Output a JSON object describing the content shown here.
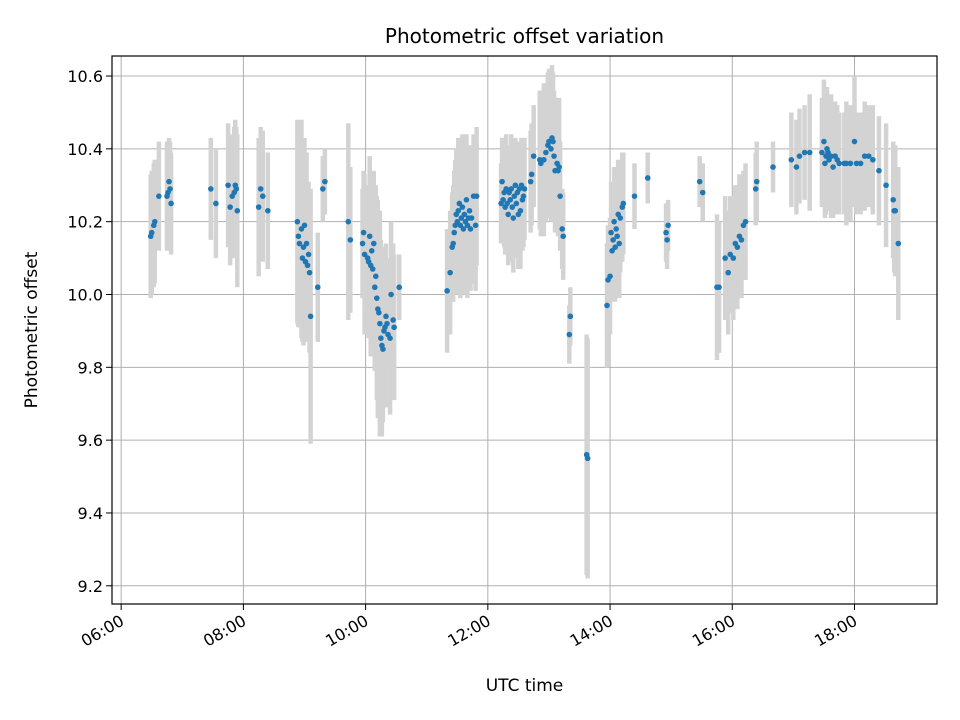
{
  "chart_data": {
    "type": "scatter",
    "title": "Photometric offset variation",
    "xlabel": "UTC time",
    "ylabel": "Photometric offset",
    "x_unit": "hours UTC",
    "xlim": [
      "05:51",
      "19:21"
    ],
    "ylim": [
      9.15,
      10.655
    ],
    "x_ticks": [
      "06:00",
      "08:00",
      "10:00",
      "12:00",
      "14:00",
      "16:00",
      "18:00"
    ],
    "y_ticks": [
      9.2,
      9.4,
      9.6,
      9.8,
      10.0,
      10.2,
      10.4,
      10.6
    ],
    "y_tick_labels": [
      "9.2",
      "9.4",
      "9.6",
      "9.8",
      "10.0",
      "10.2",
      "10.4",
      "10.6"
    ],
    "grid": true,
    "point_color": "#1f77b4",
    "errorbar_color": "#d3d3d3",
    "points": [
      [
        "06:29",
        10.16,
        0.17
      ],
      [
        "06:30",
        10.17,
        0.17
      ],
      [
        "06:32",
        10.19,
        0.17
      ],
      [
        "06:33",
        10.2,
        0.17
      ],
      [
        "06:37",
        10.27,
        0.15
      ],
      [
        "06:45",
        10.27,
        0.15
      ],
      [
        "06:46",
        10.28,
        0.14
      ],
      [
        "06:47",
        10.31,
        0.12
      ],
      [
        "06:48",
        10.29,
        0.13
      ],
      [
        "06:49",
        10.25,
        0.14
      ],
      [
        "07:28",
        10.29,
        0.14
      ],
      [
        "07:33",
        10.25,
        0.15
      ],
      [
        "07:45",
        10.3,
        0.17
      ],
      [
        "07:47",
        10.24,
        0.16
      ],
      [
        "07:49",
        10.27,
        0.17
      ],
      [
        "07:51",
        10.28,
        0.18
      ],
      [
        "07:52",
        10.3,
        0.18
      ],
      [
        "07:53",
        10.29,
        0.17
      ],
      [
        "07:54",
        10.23,
        0.21
      ],
      [
        "08:15",
        10.24,
        0.19
      ],
      [
        "08:17",
        10.29,
        0.17
      ],
      [
        "08:19",
        10.27,
        0.18
      ],
      [
        "08:24",
        10.23,
        0.16
      ],
      [
        "08:53",
        10.2,
        0.28
      ],
      [
        "08:54",
        10.16,
        0.25
      ],
      [
        "08:55",
        10.14,
        0.23
      ],
      [
        "08:57",
        10.18,
        0.3
      ],
      [
        "08:58",
        10.1,
        0.23
      ],
      [
        "08:59",
        10.13,
        0.27
      ],
      [
        "09:00",
        10.19,
        0.24
      ],
      [
        "09:01",
        10.09,
        0.22
      ],
      [
        "09:02",
        10.14,
        0.25
      ],
      [
        "09:03",
        10.08,
        0.19
      ],
      [
        "09:04",
        10.11,
        0.2
      ],
      [
        "09:05",
        10.06,
        0.22
      ],
      [
        "09:06",
        9.94,
        0.35
      ],
      [
        "09:13",
        10.02,
        0.15
      ],
      [
        "09:18",
        10.29,
        0.09
      ],
      [
        "09:20",
        10.31,
        0.09
      ],
      [
        "09:43",
        10.2,
        0.27
      ],
      [
        "09:45",
        10.15,
        0.2
      ],
      [
        "09:57",
        10.14,
        0.15
      ],
      [
        "09:58",
        10.17,
        0.17
      ],
      [
        "09:59",
        10.11,
        0.22
      ],
      [
        "10:02",
        10.1,
        0.2
      ],
      [
        "10:03",
        10.09,
        0.21
      ],
      [
        "10:04",
        10.16,
        0.22
      ],
      [
        "10:05",
        10.08,
        0.25
      ],
      [
        "10:06",
        10.12,
        0.2
      ],
      [
        "10:07",
        10.07,
        0.22
      ],
      [
        "10:08",
        10.14,
        0.2
      ],
      [
        "10:09",
        10.02,
        0.23
      ],
      [
        "10:10",
        10.05,
        0.25
      ],
      [
        "10:11",
        9.99,
        0.28
      ],
      [
        "10:12",
        9.96,
        0.3
      ],
      [
        "10:13",
        9.95,
        0.27
      ],
      [
        "10:14",
        9.92,
        0.31
      ],
      [
        "10:15",
        9.88,
        0.27
      ],
      [
        "10:16",
        9.86,
        0.25
      ],
      [
        "10:17",
        9.85,
        0.2
      ],
      [
        "10:18",
        9.9,
        0.2
      ],
      [
        "10:19",
        9.91,
        0.22
      ],
      [
        "10:20",
        9.94,
        0.2
      ],
      [
        "10:21",
        9.92,
        0.18
      ],
      [
        "10:22",
        9.89,
        0.2
      ],
      [
        "10:24",
        9.88,
        0.21
      ],
      [
        "10:25",
        10.0,
        0.2
      ],
      [
        "10:27",
        9.93,
        0.21
      ],
      [
        "10:28",
        9.91,
        0.2
      ],
      [
        "10:33",
        10.02,
        0.09
      ],
      [
        "11:20",
        10.01,
        0.17
      ],
      [
        "11:23",
        10.06,
        0.17
      ],
      [
        "11:25",
        10.13,
        0.15
      ],
      [
        "11:26",
        10.14,
        0.16
      ],
      [
        "11:27",
        10.17,
        0.17
      ],
      [
        "11:28",
        10.19,
        0.18
      ],
      [
        "11:29",
        10.22,
        0.18
      ],
      [
        "11:30",
        10.2,
        0.2
      ],
      [
        "11:31",
        10.23,
        0.2
      ],
      [
        "11:32",
        10.25,
        0.18
      ],
      [
        "11:33",
        10.19,
        0.2
      ],
      [
        "11:34",
        10.21,
        0.18
      ],
      [
        "11:35",
        10.24,
        0.2
      ],
      [
        "11:36",
        10.18,
        0.18
      ],
      [
        "11:37",
        10.22,
        0.18
      ],
      [
        "11:38",
        10.2,
        0.17
      ],
      [
        "11:39",
        10.26,
        0.18
      ],
      [
        "11:40",
        10.19,
        0.2
      ],
      [
        "11:41",
        10.21,
        0.17
      ],
      [
        "11:42",
        10.23,
        0.18
      ],
      [
        "11:43",
        10.18,
        0.17
      ],
      [
        "11:44",
        10.21,
        0.18
      ],
      [
        "11:46",
        10.27,
        0.17
      ],
      [
        "11:48",
        10.19,
        0.18
      ],
      [
        "11:49",
        10.27,
        0.19
      ],
      [
        "12:13",
        10.25,
        0.11
      ],
      [
        "12:14",
        10.31,
        0.12
      ],
      [
        "12:15",
        10.26,
        0.12
      ],
      [
        "12:16",
        10.28,
        0.15
      ],
      [
        "12:17",
        10.24,
        0.13
      ],
      [
        "12:18",
        10.29,
        0.15
      ],
      [
        "12:19",
        10.25,
        0.12
      ],
      [
        "12:20",
        10.22,
        0.14
      ],
      [
        "12:21",
        10.28,
        0.13
      ],
      [
        "12:22",
        10.26,
        0.14
      ],
      [
        "12:23",
        10.29,
        0.15
      ],
      [
        "12:24",
        10.24,
        0.15
      ],
      [
        "12:25",
        10.21,
        0.15
      ],
      [
        "12:26",
        10.27,
        0.14
      ],
      [
        "12:27",
        10.3,
        0.13
      ],
      [
        "12:28",
        10.25,
        0.15
      ],
      [
        "12:29",
        10.28,
        0.14
      ],
      [
        "12:30",
        10.22,
        0.15
      ],
      [
        "12:31",
        10.29,
        0.13
      ],
      [
        "12:32",
        10.23,
        0.16
      ],
      [
        "12:33",
        10.3,
        0.13
      ],
      [
        "12:34",
        10.26,
        0.14
      ],
      [
        "12:35",
        10.27,
        0.14
      ],
      [
        "12:36",
        10.29,
        0.14
      ],
      [
        "12:42",
        10.31,
        0.14
      ],
      [
        "12:43",
        10.33,
        0.14
      ],
      [
        "12:45",
        10.38,
        0.14
      ],
      [
        "12:51",
        10.37,
        0.19
      ],
      [
        "12:52",
        10.36,
        0.2
      ],
      [
        "12:55",
        10.37,
        0.21
      ],
      [
        "12:57",
        10.39,
        0.19
      ],
      [
        "12:59",
        10.41,
        0.2
      ],
      [
        "13:00",
        10.42,
        0.2
      ],
      [
        "13:02",
        10.4,
        0.2
      ],
      [
        "13:03",
        10.43,
        0.2
      ],
      [
        "13:04",
        10.42,
        0.19
      ],
      [
        "13:05",
        10.38,
        0.18
      ],
      [
        "13:06",
        10.34,
        0.17
      ],
      [
        "13:08",
        10.36,
        0.18
      ],
      [
        "13:09",
        10.34,
        0.18
      ],
      [
        "13:10",
        10.35,
        0.19
      ],
      [
        "13:11",
        10.27,
        0.15
      ],
      [
        "13:13",
        10.18,
        0.11
      ],
      [
        "13:14",
        10.16,
        0.12
      ],
      [
        "13:20",
        9.89,
        0.08
      ],
      [
        "13:21",
        9.94,
        0.08
      ],
      [
        "13:37",
        9.56,
        0.33
      ],
      [
        "13:38",
        9.55,
        0.33
      ],
      [
        "13:57",
        9.97,
        0.17
      ],
      [
        "13:58",
        10.04,
        0.15
      ],
      [
        "14:00",
        10.05,
        0.16
      ],
      [
        "14:01",
        10.17,
        0.14
      ],
      [
        "14:02",
        10.12,
        0.14
      ],
      [
        "14:03",
        10.15,
        0.15
      ],
      [
        "14:04",
        10.2,
        0.15
      ],
      [
        "14:05",
        10.13,
        0.15
      ],
      [
        "14:06",
        10.18,
        0.14
      ],
      [
        "14:07",
        10.16,
        0.14
      ],
      [
        "14:08",
        10.22,
        0.15
      ],
      [
        "14:09",
        10.14,
        0.15
      ],
      [
        "14:10",
        10.21,
        0.15
      ],
      [
        "14:12",
        10.24,
        0.15
      ],
      [
        "14:13",
        10.25,
        0.14
      ],
      [
        "14:24",
        10.27,
        0.09
      ],
      [
        "14:37",
        10.32,
        0.07
      ],
      [
        "14:55",
        10.17,
        0.08
      ],
      [
        "14:56",
        10.15,
        0.08
      ],
      [
        "14:57",
        10.19,
        0.07
      ],
      [
        "15:28",
        10.31,
        0.07
      ],
      [
        "15:31",
        10.28,
        0.08
      ],
      [
        "15:45",
        10.02,
        0.2
      ],
      [
        "15:47",
        10.02,
        0.18
      ],
      [
        "15:53",
        10.1,
        0.17
      ],
      [
        "15:56",
        10.06,
        0.17
      ],
      [
        "15:58",
        10.11,
        0.16
      ],
      [
        "16:01",
        10.1,
        0.17
      ],
      [
        "16:03",
        10.14,
        0.16
      ],
      [
        "16:05",
        10.13,
        0.17
      ],
      [
        "16:07",
        10.16,
        0.17
      ],
      [
        "16:09",
        10.15,
        0.16
      ],
      [
        "16:11",
        10.19,
        0.15
      ],
      [
        "16:13",
        10.2,
        0.16
      ],
      [
        "16:23",
        10.29,
        0.1
      ],
      [
        "16:24",
        10.31,
        0.11
      ],
      [
        "16:40",
        10.35,
        0.07
      ],
      [
        "16:58",
        10.37,
        0.13
      ],
      [
        "17:03",
        10.35,
        0.13
      ],
      [
        "17:06",
        10.38,
        0.13
      ],
      [
        "17:11",
        10.39,
        0.13
      ],
      [
        "17:16",
        10.39,
        0.16
      ],
      [
        "17:28",
        10.39,
        0.15
      ],
      [
        "17:30",
        10.42,
        0.17
      ],
      [
        "17:31",
        10.36,
        0.15
      ],
      [
        "17:32",
        10.38,
        0.16
      ],
      [
        "17:33",
        10.4,
        0.17
      ],
      [
        "17:34",
        10.39,
        0.15
      ],
      [
        "17:35",
        10.37,
        0.14
      ],
      [
        "17:37",
        10.38,
        0.17
      ],
      [
        "17:39",
        10.35,
        0.14
      ],
      [
        "17:41",
        10.38,
        0.15
      ],
      [
        "17:43",
        10.37,
        0.15
      ],
      [
        "17:45",
        10.36,
        0.14
      ],
      [
        "17:50",
        10.36,
        0.14
      ],
      [
        "17:52",
        10.36,
        0.17
      ],
      [
        "17:56",
        10.36,
        0.16
      ],
      [
        "18:00",
        10.42,
        0.18
      ],
      [
        "18:02",
        10.36,
        0.14
      ],
      [
        "18:06",
        10.36,
        0.14
      ],
      [
        "18:10",
        10.38,
        0.15
      ],
      [
        "18:14",
        10.38,
        0.14
      ],
      [
        "18:18",
        10.37,
        0.15
      ],
      [
        "18:24",
        10.34,
        0.15
      ],
      [
        "18:31",
        10.3,
        0.17
      ],
      [
        "18:38",
        10.26,
        0.16
      ],
      [
        "18:39",
        10.23,
        0.17
      ],
      [
        "18:40",
        10.23,
        0.18
      ],
      [
        "18:43",
        10.14,
        0.21
      ]
    ]
  }
}
